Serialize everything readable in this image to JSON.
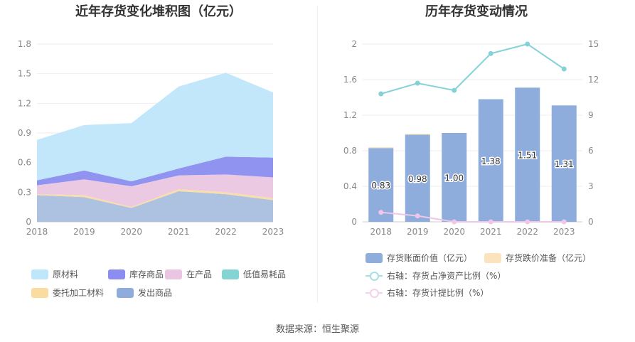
{
  "left": {
    "title": "近年存货变化堆积图（亿元）",
    "legend": [
      "原材料",
      "库存商品",
      "在产品",
      "低值易耗品",
      "委托加工材料",
      "发出商品"
    ]
  },
  "right": {
    "title": "历年存货变动情况",
    "legend": [
      "存货账面价值（亿元）",
      "存货跌价准备（亿元）",
      "右轴：存货占净资产比例（%）",
      "右轴：存货计提比例（%）"
    ]
  },
  "source": "数据来源：恒生聚源",
  "colors": {
    "raw_material": "#bfe6fb",
    "inventory_goods": "#8b8df0",
    "in_process": "#ebc6e2",
    "low_value": "#84d4d4",
    "consigned": "#fadca0",
    "shipped": "#a9bfdf",
    "bar": "#8eaddc",
    "provision": "#fbe3be",
    "ratio_line": "#84d2d8",
    "provision_line": "#f0c6e8"
  },
  "chart_data": [
    {
      "type": "area",
      "title": "近年存货变化堆积图（亿元）",
      "x": [
        "2018",
        "2019",
        "2020",
        "2021",
        "2022",
        "2023"
      ],
      "ylim": [
        0,
        1.8
      ],
      "yticks": [
        "0",
        "0.3",
        "0.6",
        "0.9",
        "1.2",
        "1.5",
        "1.8"
      ],
      "stacked": true,
      "series": [
        {
          "name": "发出商品",
          "values": [
            0.27,
            0.25,
            0.14,
            0.31,
            0.28,
            0.22
          ]
        },
        {
          "name": "委托加工材料",
          "values": [
            0.01,
            0.02,
            0.01,
            0.02,
            0.02,
            0.02
          ]
        },
        {
          "name": "低值易耗品",
          "values": [
            0.0,
            0.0,
            0.0,
            0.0,
            0.0,
            0.0
          ]
        },
        {
          "name": "在产品",
          "values": [
            0.09,
            0.16,
            0.21,
            0.14,
            0.18,
            0.21
          ]
        },
        {
          "name": "库存商品",
          "values": [
            0.05,
            0.09,
            0.05,
            0.07,
            0.18,
            0.2
          ]
        },
        {
          "name": "原材料",
          "values": [
            0.41,
            0.46,
            0.59,
            0.83,
            0.85,
            0.66
          ]
        }
      ]
    },
    {
      "type": "bar",
      "title": "历年存货变动情况",
      "categories": [
        "2018",
        "2019",
        "2020",
        "2021",
        "2022",
        "2023"
      ],
      "ylim_left": [
        0,
        2
      ],
      "yticks_left": [
        "0",
        "0.4",
        "0.8",
        "1.2",
        "1.6",
        "2"
      ],
      "ylim_right": [
        0,
        15
      ],
      "yticks_right": [
        "0",
        "3",
        "6",
        "9",
        "12",
        "15"
      ],
      "series": [
        {
          "name": "存货账面价值（亿元）",
          "axis": "left",
          "values": [
            0.83,
            0.98,
            1.0,
            1.38,
            1.51,
            1.31
          ],
          "labels": [
            "0.83",
            "0.98",
            "1.00",
            "1.38",
            "1.51",
            "1.31"
          ]
        },
        {
          "name": "存货跌价准备（亿元）",
          "axis": "left",
          "values": [
            0.01,
            0.01,
            0.0,
            0.0,
            0.0,
            0.0
          ]
        },
        {
          "name": "右轴：存货占净资产比例（%）",
          "axis": "right",
          "type": "line",
          "values": [
            10.8,
            11.7,
            11.1,
            14.2,
            15.0,
            12.9
          ]
        },
        {
          "name": "右轴：存货计提比例（%）",
          "axis": "right",
          "type": "line",
          "values": [
            0.8,
            0.5,
            0.0,
            0.0,
            0.0,
            0.0
          ]
        }
      ]
    }
  ]
}
